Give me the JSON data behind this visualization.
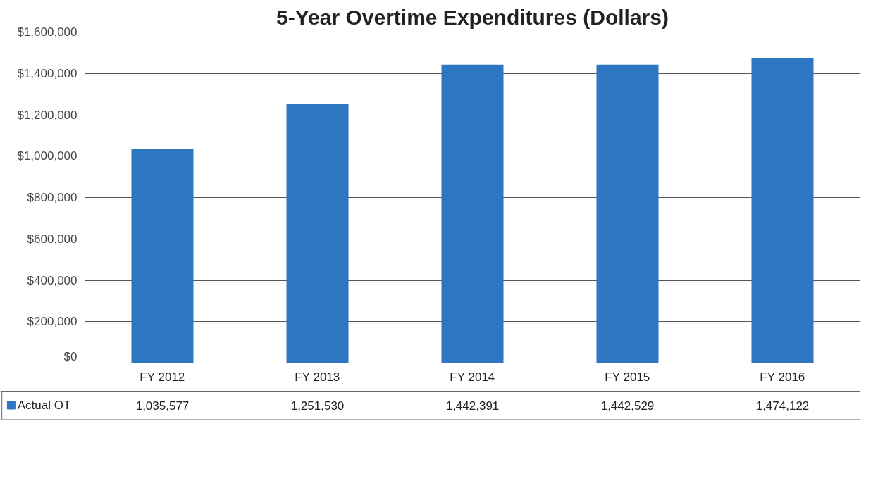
{
  "chart_data": {
    "type": "bar",
    "title": "5-Year Overtime Expenditures (Dollars)",
    "categories": [
      "FY 2012",
      "FY 2013",
      "FY 2014",
      "FY 2015",
      "FY 2016"
    ],
    "series": [
      {
        "name": "Actual OT",
        "color": "#2e75c2",
        "values": [
          1035577,
          1251530,
          1442391,
          1442529,
          1474122
        ],
        "value_labels": [
          "1,035,577",
          "1,251,530",
          "1,442,391",
          "1,442,529",
          "1,474,122"
        ]
      }
    ],
    "ylim": [
      0,
      1600000
    ],
    "yticks": [
      {
        "value": 0,
        "label": "$0"
      },
      {
        "value": 200000,
        "label": "$200,000"
      },
      {
        "value": 400000,
        "label": "$400,000"
      },
      {
        "value": 600000,
        "label": "$600,000"
      },
      {
        "value": 800000,
        "label": "$800,000"
      },
      {
        "value": 1000000,
        "label": "$1,000,000"
      },
      {
        "value": 1200000,
        "label": "$1,200,000"
      },
      {
        "value": 1400000,
        "label": "$1,400,000"
      },
      {
        "value": 1600000,
        "label": "$1,600,000"
      }
    ],
    "grid": "y",
    "legend": "bottom left"
  }
}
